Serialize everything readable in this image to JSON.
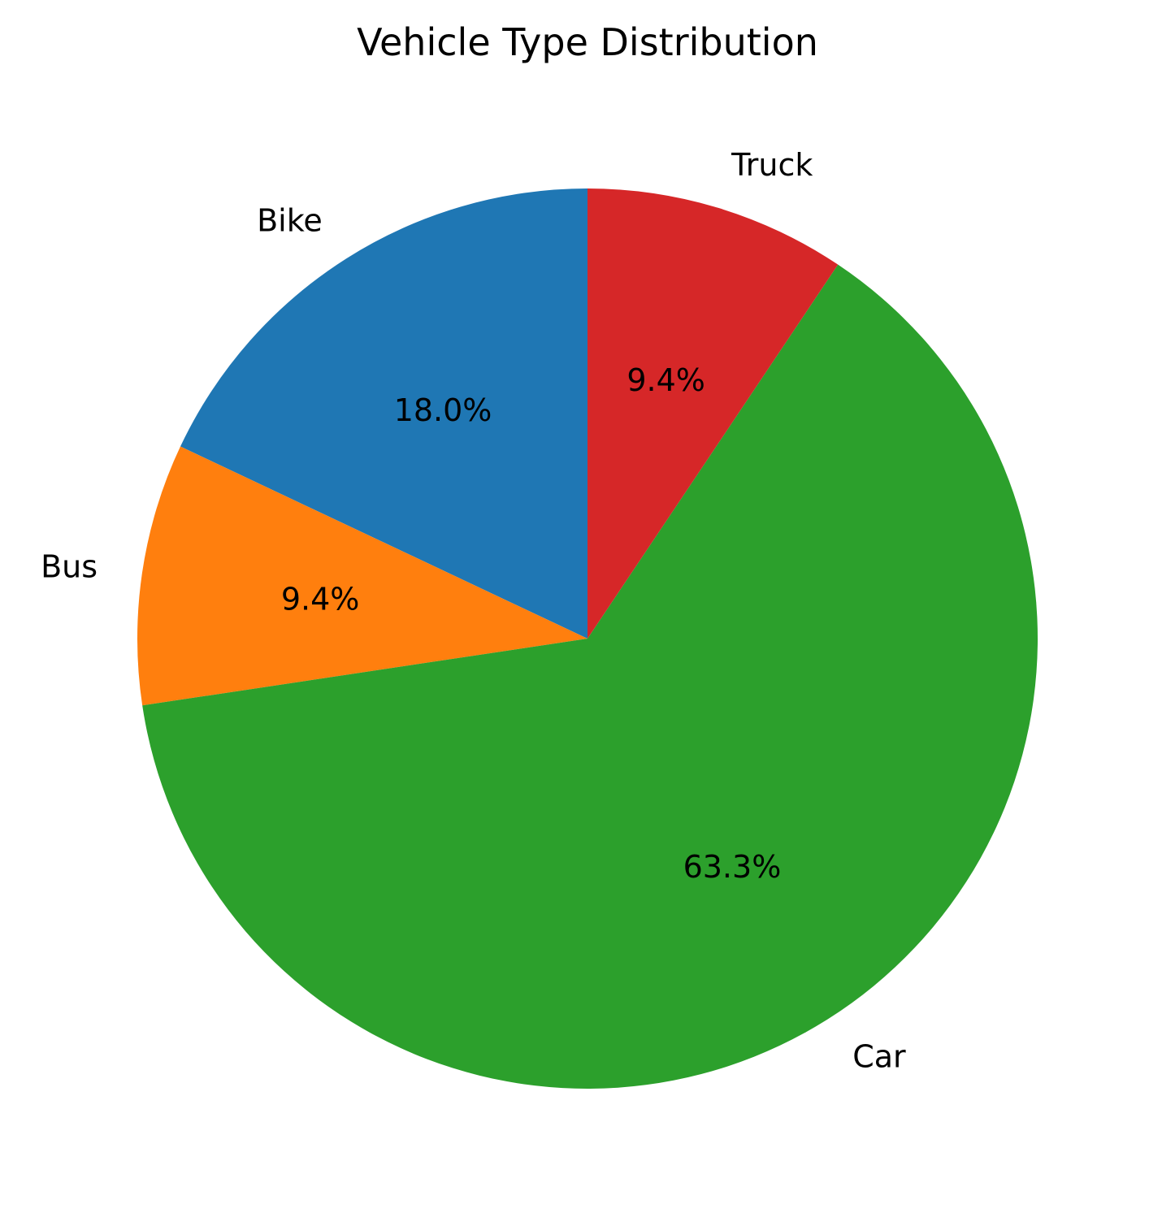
{
  "chart_data": {
    "type": "pie",
    "title": "Vehicle Type Distribution",
    "start_angle_deg": 90,
    "direction": "counterclockwise",
    "slices": [
      {
        "label": "Bike",
        "value": 18.0,
        "pct_label": "18.0%",
        "color": "#1f77b4"
      },
      {
        "label": "Bus",
        "value": 9.4,
        "pct_label": "9.4%",
        "color": "#ff7f0e"
      },
      {
        "label": "Car",
        "value": 63.3,
        "pct_label": "63.3%",
        "color": "#2ca02c"
      },
      {
        "label": "Truck",
        "value": 9.4,
        "pct_label": "9.4%",
        "color": "#d62728"
      }
    ]
  }
}
